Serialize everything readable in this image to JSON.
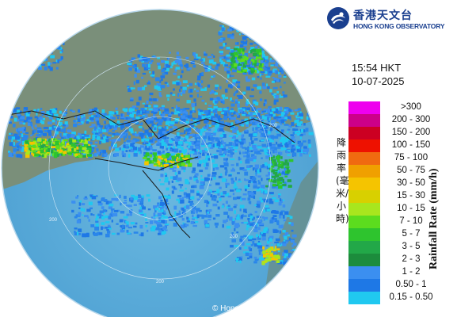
{
  "logo": {
    "name_cn": "香港天文台",
    "name_en": "HONG KONG OBSERVATORY",
    "icon": "hko-logo-icon"
  },
  "timestamp": {
    "time": "15:54 HKT",
    "date": "10-07-2025"
  },
  "legend": {
    "title_cn": "降雨率(毫米/小時)",
    "title_en": "Rainfall Rate (mm/h)",
    "items": [
      {
        "label": ">300",
        "color": "#ee00ee"
      },
      {
        "label": "200 - 300",
        "color": "#cc0088"
      },
      {
        "label": "150 - 200",
        "color": "#cc0022"
      },
      {
        "label": "100 - 150",
        "color": "#ee1100"
      },
      {
        "label": "75 - 100",
        "color": "#f06a10"
      },
      {
        "label": "50 - 75",
        "color": "#f0a000"
      },
      {
        "label": "30 - 50",
        "color": "#f5c400"
      },
      {
        "label": "15 - 30",
        "color": "#d8d000"
      },
      {
        "label": "10 - 15",
        "color": "#a8e61e"
      },
      {
        "label": "7 - 10",
        "color": "#5cdc1e"
      },
      {
        "label": "5 - 7",
        "color": "#2ec42e"
      },
      {
        "label": "3 - 5",
        "color": "#22a848"
      },
      {
        "label": "2 - 3",
        "color": "#1c8c3c"
      },
      {
        "label": "1 - 2",
        "color": "#3b8ff0"
      },
      {
        "label": "0.50 - 1",
        "color": "#1e78e6"
      },
      {
        "label": "0.15 - 0.50",
        "color": "#20c8f0"
      }
    ]
  },
  "map": {
    "range_rings": [
      "200",
      "200",
      "200",
      "200"
    ],
    "copyright": "© Hong Kong Observatory"
  }
}
